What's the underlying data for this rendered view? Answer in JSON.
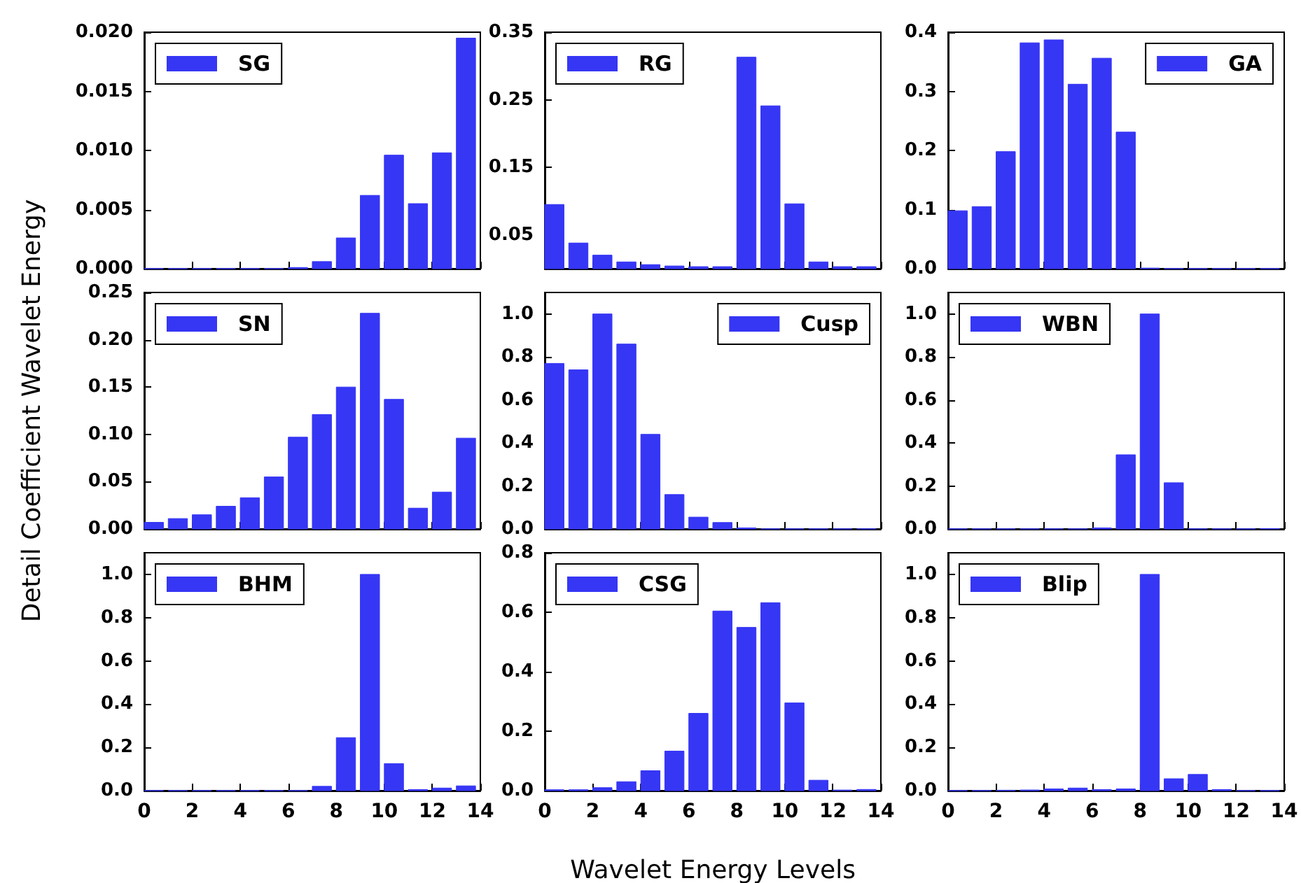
{
  "chart_data": [
    {
      "type": "bar",
      "x": [
        0.4,
        1.4,
        2.4,
        3.4,
        4.4,
        5.4,
        6.4,
        7.4,
        8.4,
        9.4,
        10.4,
        11.4,
        12.4,
        13.4
      ],
      "xlim": [
        0,
        14
      ],
      "xticks": [
        0,
        2,
        4,
        6,
        8,
        10,
        12,
        14
      ],
      "ylim": [
        0,
        0.02
      ],
      "yticks": [
        {
          "value": 0,
          "label": "0.000"
        },
        0.005,
        {
          "value": 0.01,
          "label": "0.010"
        },
        0.015,
        {
          "value": 0.02,
          "label": "0.020"
        }
      ],
      "tick_labels": "y",
      "legend": "top left",
      "series": [
        {
          "name": "SG",
          "color": "#3636f5",
          "values": [
            0,
            0,
            0,
            0,
            0,
            0,
            0.0001,
            0.0006,
            0.0026,
            0.0062,
            0.0096,
            0.0055,
            0.0098,
            0.0195
          ]
        }
      ]
    },
    {
      "type": "bar",
      "x": [
        0.4,
        1.4,
        2.4,
        3.4,
        4.4,
        5.4,
        6.4,
        7.4,
        8.4,
        9.4,
        10.4,
        11.4,
        12.4,
        13.4
      ],
      "xlim": [
        0,
        14
      ],
      "xticks": [
        0,
        2,
        4,
        6,
        8,
        10,
        12,
        14
      ],
      "ylim": [
        0,
        0.35
      ],
      "yticks": [
        0.05,
        0.15,
        0.25,
        0.35
      ],
      "tick_labels": "y",
      "legend": "top left",
      "series": [
        {
          "name": "RG",
          "color": "#3636f5",
          "values": [
            0.095,
            0.038,
            0.02,
            0.01,
            0.006,
            0.004,
            0.003,
            0.003,
            0.313,
            0.241,
            0.096,
            0.01,
            0.003,
            0.003
          ]
        }
      ]
    },
    {
      "type": "bar",
      "x": [
        0.4,
        1.4,
        2.4,
        3.4,
        4.4,
        5.4,
        6.4,
        7.4,
        8.4,
        9.4,
        10.4,
        11.4,
        12.4,
        13.4
      ],
      "xlim": [
        0,
        14
      ],
      "xticks": [
        0,
        2,
        4,
        6,
        8,
        10,
        12,
        14
      ],
      "ylim": [
        0,
        0.4
      ],
      "yticks": [
        {
          "value": 0,
          "label": "0.0"
        },
        0.1,
        0.2,
        0.3,
        0.4
      ],
      "tick_labels": "y",
      "legend": "top right",
      "series": [
        {
          "name": "GA",
          "color": "#3636f5",
          "values": [
            0.098,
            0.105,
            0.198,
            0.382,
            0.387,
            0.312,
            0.356,
            0.231,
            0.001,
            0,
            0,
            0,
            0,
            0
          ]
        }
      ]
    },
    {
      "type": "bar",
      "x": [
        0.4,
        1.4,
        2.4,
        3.4,
        4.4,
        5.4,
        6.4,
        7.4,
        8.4,
        9.4,
        10.4,
        11.4,
        12.4,
        13.4
      ],
      "xlim": [
        0,
        14
      ],
      "xticks": [
        0,
        2,
        4,
        6,
        8,
        10,
        12,
        14
      ],
      "ylim": [
        0,
        0.25
      ],
      "yticks": [
        {
          "value": 0,
          "label": "0.00"
        },
        0.05,
        {
          "value": 0.1,
          "label": "0.10"
        },
        0.15,
        {
          "value": 0.2,
          "label": "0.20"
        },
        0.25
      ],
      "tick_labels": "y",
      "legend": "top left",
      "ylabel": "Detail Coefficient Wavelet Energy",
      "series": [
        {
          "name": "SN",
          "color": "#3636f5",
          "values": [
            0.007,
            0.011,
            0.015,
            0.024,
            0.033,
            0.055,
            0.097,
            0.121,
            0.15,
            0.228,
            0.137,
            0.022,
            0.039,
            0.096
          ]
        }
      ]
    },
    {
      "type": "bar",
      "x": [
        0.4,
        1.4,
        2.4,
        3.4,
        4.4,
        5.4,
        6.4,
        7.4,
        8.4,
        9.4,
        10.4,
        11.4,
        12.4,
        13.4
      ],
      "xlim": [
        0,
        14
      ],
      "xticks": [
        0,
        2,
        4,
        6,
        8,
        10,
        12,
        14
      ],
      "ylim": [
        0,
        1.1
      ],
      "yticks": [
        {
          "value": 0,
          "label": "0.0"
        },
        0.2,
        0.4,
        0.6,
        0.8,
        {
          "value": 1,
          "label": "1.0"
        }
      ],
      "tick_labels": "y",
      "legend": "top right",
      "series": [
        {
          "name": "Cusp",
          "color": "#3636f5",
          "values": [
            0.77,
            0.74,
            1.0,
            0.86,
            0.44,
            0.16,
            0.055,
            0.03,
            0.005,
            0,
            0,
            0,
            0,
            0
          ]
        }
      ]
    },
    {
      "type": "bar",
      "x": [
        0.4,
        1.4,
        2.4,
        3.4,
        4.4,
        5.4,
        6.4,
        7.4,
        8.4,
        9.4,
        10.4,
        11.4,
        12.4,
        13.4
      ],
      "xlim": [
        0,
        14
      ],
      "xticks": [
        0,
        2,
        4,
        6,
        8,
        10,
        12,
        14
      ],
      "ylim": [
        0,
        1.1
      ],
      "yticks": [
        {
          "value": 0,
          "label": "0.0"
        },
        0.2,
        0.4,
        0.6,
        0.8,
        {
          "value": 1,
          "label": "1.0"
        }
      ],
      "tick_labels": "y",
      "legend": "top left",
      "series": [
        {
          "name": "WBN",
          "color": "#3636f5",
          "values": [
            0,
            0,
            0,
            0,
            0,
            0,
            0.005,
            0.345,
            1.0,
            0.215,
            0,
            0,
            0,
            0.002
          ]
        }
      ]
    },
    {
      "type": "bar",
      "x": [
        0.4,
        1.4,
        2.4,
        3.4,
        4.4,
        5.4,
        6.4,
        7.4,
        8.4,
        9.4,
        10.4,
        11.4,
        12.4,
        13.4
      ],
      "xlim": [
        0,
        14
      ],
      "xticks": [
        0,
        2,
        4,
        6,
        8,
        10,
        12,
        14
      ],
      "ylim": [
        0,
        1.1
      ],
      "yticks": [
        {
          "value": 0,
          "label": "0.0"
        },
        0.2,
        0.4,
        0.6,
        0.8,
        {
          "value": 1,
          "label": "1.0"
        }
      ],
      "legend": "top left",
      "series": [
        {
          "name": "BHM",
          "color": "#3636f5",
          "values": [
            0,
            0,
            0,
            0,
            0,
            0,
            0,
            0.02,
            0.245,
            1.0,
            0.125,
            0.005,
            0.012,
            0.022
          ]
        }
      ]
    },
    {
      "type": "bar",
      "x": [
        0.4,
        1.4,
        2.4,
        3.4,
        4.4,
        5.4,
        6.4,
        7.4,
        8.4,
        9.4,
        10.4,
        11.4,
        12.4,
        13.4
      ],
      "xlim": [
        0,
        14
      ],
      "xticks": [
        0,
        2,
        4,
        6,
        8,
        10,
        12,
        14
      ],
      "ylim": [
        0,
        0.8
      ],
      "yticks": [
        {
          "value": 0,
          "label": "0.0"
        },
        0.2,
        0.4,
        0.6,
        0.8
      ],
      "legend": "top left",
      "xlabel": "Wavelet Energy Levels",
      "series": [
        {
          "name": "CSG",
          "color": "#3636f5",
          "values": [
            0.003,
            0.003,
            0.01,
            0.03,
            0.067,
            0.133,
            0.26,
            0.604,
            0.549,
            0.632,
            0.295,
            0.035,
            0.002,
            0.004
          ]
        }
      ]
    },
    {
      "type": "bar",
      "x": [
        0.4,
        1.4,
        2.4,
        3.4,
        4.4,
        5.4,
        6.4,
        7.4,
        8.4,
        9.4,
        10.4,
        11.4,
        12.4,
        13.4
      ],
      "xlim": [
        0,
        14
      ],
      "xticks": [
        0,
        2,
        4,
        6,
        8,
        10,
        12,
        14
      ],
      "ylim": [
        0,
        1.1
      ],
      "yticks": [
        {
          "value": 0,
          "label": "0.0"
        },
        0.2,
        0.4,
        0.6,
        0.8,
        {
          "value": 1,
          "label": "1.0"
        }
      ],
      "legend": "top left",
      "series": [
        {
          "name": "Blip",
          "color": "#3636f5",
          "values": [
            0,
            0,
            0.002,
            0.003,
            0.008,
            0.012,
            0.005,
            0.008,
            1.0,
            0.055,
            0.075,
            0.005,
            0,
            0
          ]
        }
      ]
    }
  ]
}
